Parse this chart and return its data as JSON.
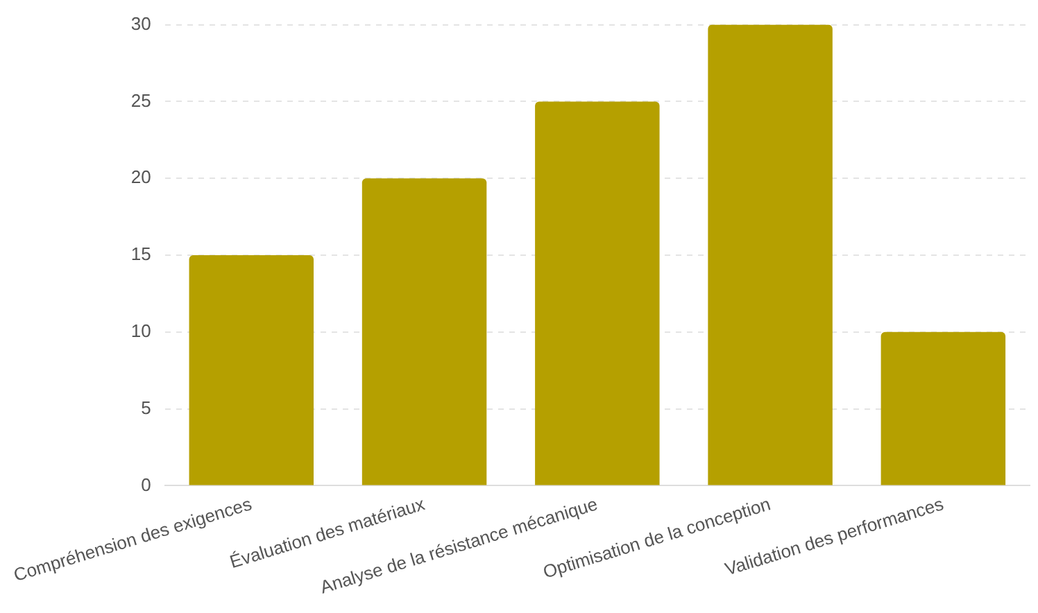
{
  "chart_data": {
    "type": "bar",
    "categories": [
      "Compréhension des exigences",
      "Évaluation des matériaux",
      "Analyse de la résistance mécanique",
      "Optimisation de la conception",
      "Validation des performances"
    ],
    "values": [
      15,
      20,
      25,
      30,
      10
    ],
    "color": "#b5a000",
    "ylim": [
      0,
      30
    ],
    "yticks": [
      0,
      5,
      10,
      15,
      20,
      25,
      30
    ],
    "grid": "y",
    "legend": false
  }
}
